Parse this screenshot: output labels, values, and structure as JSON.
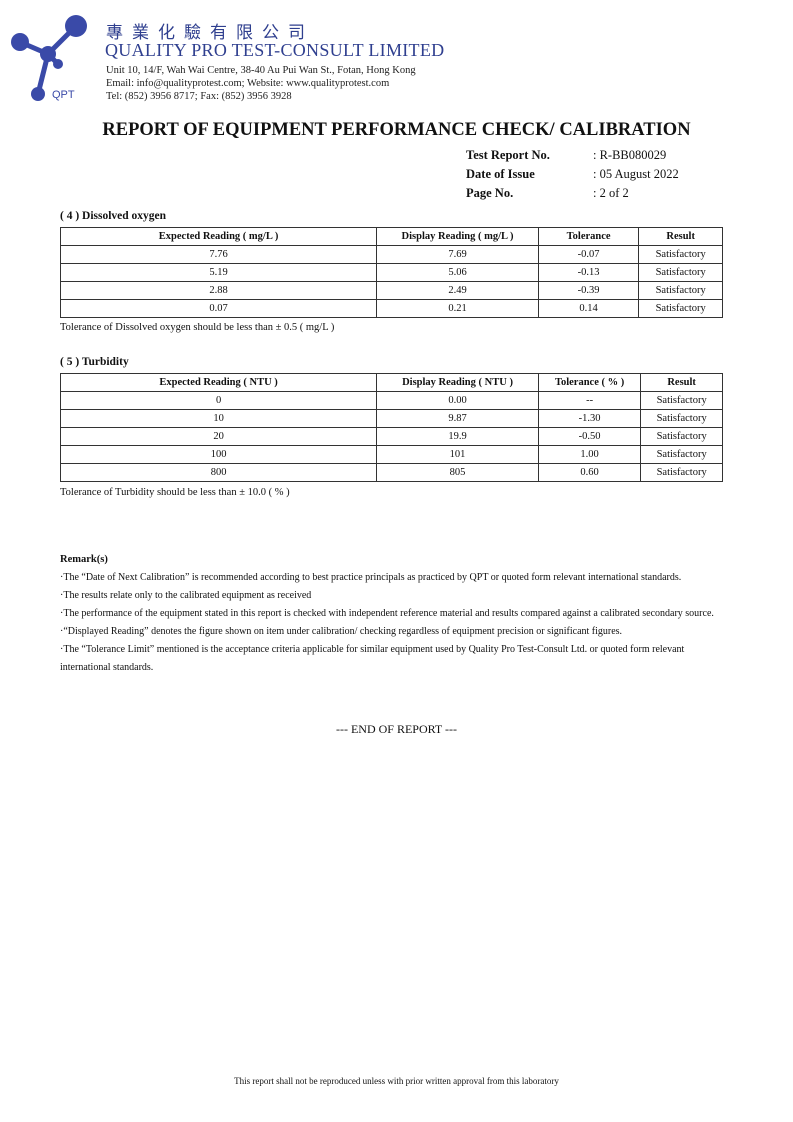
{
  "header": {
    "chinese_name": "專業化驗有限公司",
    "company_name": "QUALITY PRO TEST-CONSULT LIMITED",
    "address": "Unit 10, 14/F, Wah Wai Centre, 38-40 Au Pui Wan St., Fotan, Hong Kong",
    "contact": "Email: info@qualityprotest.com; Website: www.qualityprotest.com",
    "phone": "Tel: (852) 3956 8717; Fax: (852) 3956 3928",
    "logo_text": "QPT",
    "brand_color": "#3a4aa8"
  },
  "title": "REPORT OF EQUIPMENT PERFORMANCE CHECK/ CALIBRATION",
  "meta": [
    {
      "label": "Test Report No.",
      "value": ": R-BB080029"
    },
    {
      "label": "Date of Issue",
      "value": ": 05 August 2022"
    },
    {
      "label": "Page No.",
      "value": ": 2 of 2"
    }
  ],
  "do_section": {
    "heading": "( 4 )  Dissolved oxygen",
    "headers": [
      "Expected Reading ( mg/L )",
      "Display Reading ( mg/L )",
      "Tolerance",
      "Result"
    ],
    "rows": [
      [
        "7.76",
        "7.69",
        "-0.07",
        "Satisfactory"
      ],
      [
        "5.19",
        "5.06",
        "-0.13",
        "Satisfactory"
      ],
      [
        "2.88",
        "2.49",
        "-0.39",
        "Satisfactory"
      ],
      [
        "0.07",
        "0.21",
        "0.14",
        "Satisfactory"
      ]
    ],
    "note": "Tolerance of Dissolved oxygen should be less than ± 0.5 ( mg/L )"
  },
  "turbidity_section": {
    "heading": "( 5 )  Turbidity",
    "headers": [
      "Expected Reading ( NTU )",
      "Display Reading ( NTU )",
      "Tolerance ( % )",
      "Result"
    ],
    "rows": [
      [
        "0",
        "0.00",
        "--",
        "Satisfactory"
      ],
      [
        "10",
        "9.87",
        "-1.30",
        "Satisfactory"
      ],
      [
        "20",
        "19.9",
        "-0.50",
        "Satisfactory"
      ],
      [
        "100",
        "101",
        "1.00",
        "Satisfactory"
      ],
      [
        "800",
        "805",
        "0.60",
        "Satisfactory"
      ]
    ],
    "note": "Tolerance of Turbidity should be less than ± 10.0 ( % )"
  },
  "remarks": {
    "heading": "Remark(s)",
    "items": [
      "·The “Date of Next Calibration” is recommended according to best practice principals as practiced by QPT or quoted form relevant international standards.",
      "·The results relate only to the calibrated equipment as received",
      "·The performance of the equipment stated in this report is checked with independent reference material and results compared against a calibrated secondary source.",
      "·“Displayed Reading” denotes the figure shown on item under calibration/ checking regardless of equipment precision or significant figures.",
      "·The “Tolerance Limit” mentioned is the acceptance criteria applicable for similar equipment used by Quality Pro Test-Consult Ltd. or quoted form relevant international standards."
    ]
  },
  "end_text": "--- END OF REPORT ---",
  "footer": "This report shall not be reproduced unless with prior written approval from this laboratory"
}
